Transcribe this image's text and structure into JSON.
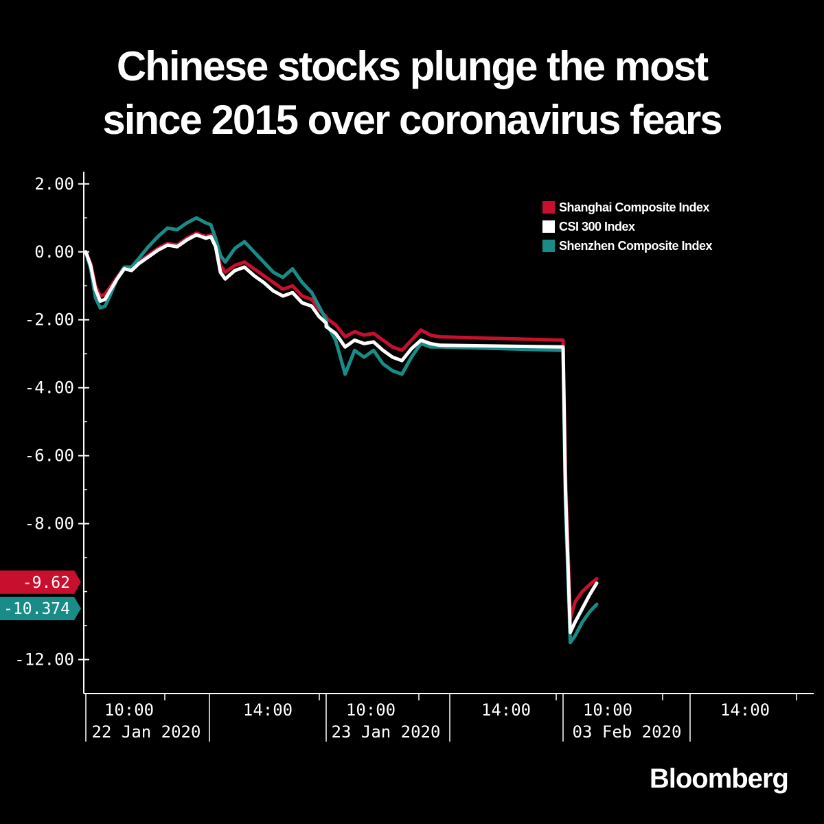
{
  "title": {
    "line1": "Chinese stocks plunge the most",
    "line2": "since 2015 over coronavirus fears"
  },
  "brand": "Bloomberg",
  "legend": [
    {
      "label": "Shanghai Composite Index",
      "color": "#c8102e"
    },
    {
      "label": "CSI 300 Index",
      "color": "#ffffff"
    },
    {
      "label": "Shenzhen Composite Index",
      "color": "#1a8c87"
    }
  ],
  "chart_data": {
    "type": "line",
    "ylim": [
      -13,
      2.4
    ],
    "y_ticks": [
      "2.00",
      "0.00",
      "-2.00",
      "-4.00",
      "-6.00",
      "-8.00",
      "-12.00"
    ],
    "y_tick_values": [
      2,
      0,
      -2,
      -4,
      -6,
      -8,
      -12
    ],
    "x_ticks": [
      {
        "label": "10:00",
        "date": "22 Jan 2020"
      },
      {
        "label": "14:00",
        "date": ""
      },
      {
        "label": "10:00",
        "date": "23 Jan 2020"
      },
      {
        "label": "14:00",
        "date": ""
      },
      {
        "label": "10:00",
        "date": "03 Feb 2020"
      },
      {
        "label": "14:00",
        "date": ""
      }
    ],
    "last_values": [
      {
        "label": "-9.62",
        "color": "#c8102e"
      },
      {
        "label": "-10.374",
        "color": "#1a8c87"
      }
    ],
    "sessions": [
      "22 Jan 2020",
      "23 Jan 2020",
      "03 Feb 2020"
    ],
    "series": [
      {
        "name": "Shanghai Composite Index",
        "color": "#c8102e",
        "values": [
          [
            0.0,
            0.0
          ],
          [
            0.02,
            -0.35
          ],
          [
            0.04,
            -1.0
          ],
          [
            0.06,
            -1.3
          ],
          [
            0.08,
            -1.25
          ],
          [
            0.1,
            -1.05
          ],
          [
            0.13,
            -0.75
          ],
          [
            0.16,
            -0.45
          ],
          [
            0.19,
            -0.5
          ],
          [
            0.22,
            -0.3
          ],
          [
            0.26,
            -0.1
          ],
          [
            0.3,
            0.1
          ],
          [
            0.34,
            0.25
          ],
          [
            0.38,
            0.2
          ],
          [
            0.42,
            0.4
          ],
          [
            0.46,
            0.55
          ],
          [
            0.5,
            0.45
          ],
          [
            0.52,
            0.5
          ],
          [
            0.54,
            0.2
          ],
          [
            0.56,
            -0.4
          ],
          [
            0.58,
            -0.6
          ],
          [
            0.62,
            -0.4
          ],
          [
            0.66,
            -0.3
          ],
          [
            0.7,
            -0.5
          ],
          [
            0.74,
            -0.7
          ],
          [
            0.78,
            -0.9
          ],
          [
            0.82,
            -1.1
          ],
          [
            0.86,
            -1.0
          ],
          [
            0.9,
            -1.3
          ],
          [
            0.94,
            -1.4
          ],
          [
            0.97,
            -1.7
          ],
          [
            1.0,
            -1.9
          ],
          [
            1.0,
            -1.95
          ],
          [
            1.04,
            -2.15
          ],
          [
            1.08,
            -2.5
          ],
          [
            1.12,
            -2.35
          ],
          [
            1.16,
            -2.45
          ],
          [
            1.2,
            -2.4
          ],
          [
            1.24,
            -2.6
          ],
          [
            1.28,
            -2.8
          ],
          [
            1.32,
            -2.9
          ],
          [
            1.36,
            -2.6
          ],
          [
            1.4,
            -2.3
          ],
          [
            1.44,
            -2.45
          ],
          [
            1.48,
            -2.5
          ],
          [
            2.0,
            -2.6
          ],
          [
            2.01,
            -6.5
          ],
          [
            2.03,
            -10.8
          ],
          [
            2.05,
            -10.3
          ],
          [
            2.08,
            -10.0
          ],
          [
            2.11,
            -9.8
          ],
          [
            2.14,
            -9.62
          ]
        ]
      },
      {
        "name": "CSI 300 Index",
        "color": "#ffffff",
        "values": [
          [
            0.0,
            0.0
          ],
          [
            0.02,
            -0.4
          ],
          [
            0.04,
            -1.1
          ],
          [
            0.06,
            -1.45
          ],
          [
            0.08,
            -1.4
          ],
          [
            0.1,
            -1.15
          ],
          [
            0.13,
            -0.8
          ],
          [
            0.16,
            -0.5
          ],
          [
            0.19,
            -0.55
          ],
          [
            0.22,
            -0.35
          ],
          [
            0.26,
            -0.15
          ],
          [
            0.3,
            0.05
          ],
          [
            0.34,
            0.2
          ],
          [
            0.38,
            0.15
          ],
          [
            0.42,
            0.35
          ],
          [
            0.46,
            0.5
          ],
          [
            0.5,
            0.4
          ],
          [
            0.52,
            0.45
          ],
          [
            0.54,
            0.15
          ],
          [
            0.56,
            -0.6
          ],
          [
            0.58,
            -0.8
          ],
          [
            0.62,
            -0.55
          ],
          [
            0.66,
            -0.45
          ],
          [
            0.7,
            -0.7
          ],
          [
            0.74,
            -0.9
          ],
          [
            0.78,
            -1.15
          ],
          [
            0.82,
            -1.3
          ],
          [
            0.86,
            -1.2
          ],
          [
            0.9,
            -1.5
          ],
          [
            0.94,
            -1.6
          ],
          [
            0.97,
            -1.9
          ],
          [
            1.0,
            -2.1
          ],
          [
            1.0,
            -2.2
          ],
          [
            1.04,
            -2.4
          ],
          [
            1.08,
            -2.8
          ],
          [
            1.12,
            -2.6
          ],
          [
            1.16,
            -2.7
          ],
          [
            1.2,
            -2.65
          ],
          [
            1.24,
            -2.9
          ],
          [
            1.28,
            -3.1
          ],
          [
            1.32,
            -3.2
          ],
          [
            1.36,
            -2.85
          ],
          [
            1.4,
            -2.6
          ],
          [
            1.44,
            -2.7
          ],
          [
            1.48,
            -2.75
          ],
          [
            2.0,
            -2.8
          ],
          [
            2.01,
            -7.0
          ],
          [
            2.03,
            -11.2
          ],
          [
            2.05,
            -10.9
          ],
          [
            2.08,
            -10.5
          ],
          [
            2.11,
            -10.1
          ],
          [
            2.14,
            -9.75
          ]
        ]
      },
      {
        "name": "Shenzhen Composite Index",
        "color": "#1a8c87",
        "values": [
          [
            0.0,
            0.0
          ],
          [
            0.02,
            -0.5
          ],
          [
            0.04,
            -1.35
          ],
          [
            0.06,
            -1.65
          ],
          [
            0.08,
            -1.6
          ],
          [
            0.1,
            -1.3
          ],
          [
            0.13,
            -0.8
          ],
          [
            0.16,
            -0.45
          ],
          [
            0.19,
            -0.45
          ],
          [
            0.22,
            -0.2
          ],
          [
            0.26,
            0.15
          ],
          [
            0.3,
            0.45
          ],
          [
            0.34,
            0.7
          ],
          [
            0.38,
            0.65
          ],
          [
            0.42,
            0.85
          ],
          [
            0.46,
            1.0
          ],
          [
            0.5,
            0.85
          ],
          [
            0.52,
            0.8
          ],
          [
            0.54,
            0.4
          ],
          [
            0.56,
            -0.1
          ],
          [
            0.58,
            -0.3
          ],
          [
            0.62,
            0.1
          ],
          [
            0.66,
            0.3
          ],
          [
            0.7,
            0.0
          ],
          [
            0.74,
            -0.3
          ],
          [
            0.78,
            -0.6
          ],
          [
            0.82,
            -0.75
          ],
          [
            0.86,
            -0.5
          ],
          [
            0.9,
            -0.9
          ],
          [
            0.94,
            -1.2
          ],
          [
            0.97,
            -1.6
          ],
          [
            1.0,
            -2.0
          ],
          [
            1.0,
            -2.1
          ],
          [
            1.04,
            -2.6
          ],
          [
            1.08,
            -3.6
          ],
          [
            1.12,
            -2.9
          ],
          [
            1.16,
            -3.1
          ],
          [
            1.2,
            -2.9
          ],
          [
            1.24,
            -3.3
          ],
          [
            1.28,
            -3.5
          ],
          [
            1.32,
            -3.6
          ],
          [
            1.36,
            -3.1
          ],
          [
            1.4,
            -2.7
          ],
          [
            1.44,
            -2.8
          ],
          [
            1.48,
            -2.8
          ],
          [
            2.0,
            -2.9
          ],
          [
            2.01,
            -7.5
          ],
          [
            2.03,
            -11.5
          ],
          [
            2.05,
            -11.3
          ],
          [
            2.08,
            -10.9
          ],
          [
            2.11,
            -10.6
          ],
          [
            2.14,
            -10.374
          ]
        ]
      }
    ]
  }
}
